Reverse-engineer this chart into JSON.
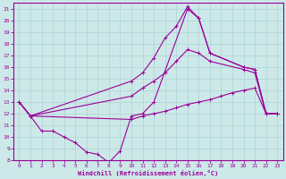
{
  "xlabel": "Windchill (Refroidissement éolien,°C)",
  "xlim": [
    -0.5,
    23.5
  ],
  "ylim": [
    8,
    21.5
  ],
  "xticks": [
    0,
    1,
    2,
    3,
    4,
    5,
    6,
    7,
    8,
    9,
    10,
    11,
    12,
    13,
    14,
    15,
    16,
    17,
    18,
    19,
    20,
    21,
    22,
    23
  ],
  "yticks": [
    8,
    9,
    10,
    11,
    12,
    13,
    14,
    15,
    16,
    17,
    18,
    19,
    20,
    21
  ],
  "bg_color": "#cde8e8",
  "line_color": "#990099",
  "grid_color": "#aad4d4",
  "lines": [
    {
      "x": [
        0,
        1,
        2,
        3,
        4,
        5,
        6,
        7,
        8,
        9,
        10,
        11,
        12,
        15,
        16,
        17,
        20,
        21,
        22,
        23
      ],
      "y": [
        13,
        11.8,
        10.5,
        10.5,
        10,
        9.5,
        8.7,
        8.5,
        7.8,
        8.8,
        11.8,
        12,
        13,
        21,
        20.2,
        17.2,
        16,
        15.8,
        12,
        12
      ]
    },
    {
      "x": [
        0,
        1,
        10,
        11,
        12,
        13,
        14,
        15,
        16,
        17,
        20,
        21,
        22,
        23
      ],
      "y": [
        13,
        11.8,
        14.8,
        15.5,
        16.8,
        18.5,
        19.5,
        21.2,
        20.2,
        17.2,
        16,
        15.8,
        12,
        12
      ]
    },
    {
      "x": [
        0,
        1,
        10,
        11,
        12,
        13,
        14,
        15,
        16,
        17,
        20,
        21,
        22,
        23
      ],
      "y": [
        13,
        11.8,
        13.5,
        14.2,
        14.8,
        15.5,
        16.5,
        17.5,
        17.2,
        16.5,
        15.8,
        15.5,
        12,
        12
      ]
    },
    {
      "x": [
        0,
        1,
        10,
        11,
        12,
        13,
        14,
        15,
        16,
        17,
        18,
        19,
        20,
        21,
        22,
        23
      ],
      "y": [
        13,
        11.8,
        11.5,
        11.8,
        12.0,
        12.2,
        12.5,
        12.8,
        13.0,
        13.2,
        13.5,
        13.8,
        14.0,
        14.2,
        12,
        12
      ]
    }
  ]
}
